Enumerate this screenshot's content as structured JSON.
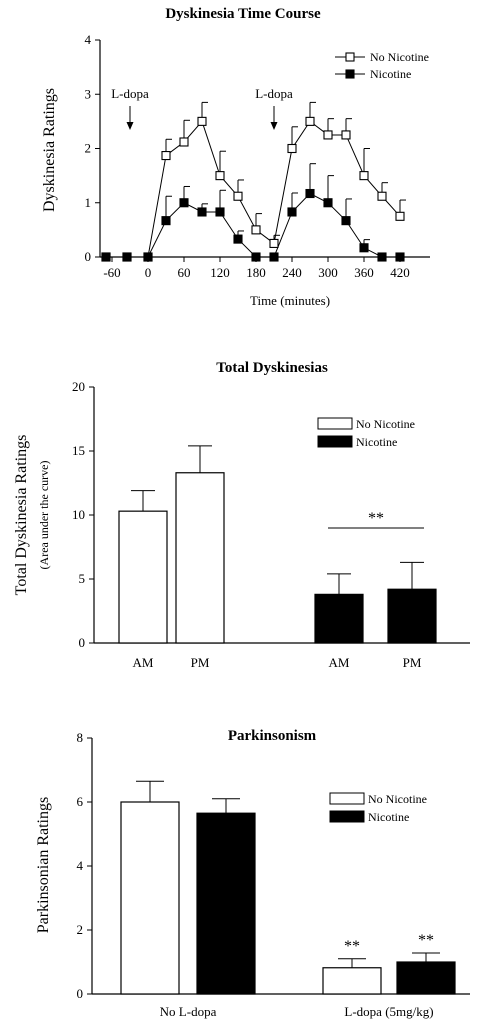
{
  "charts": [
    {
      "type": "line",
      "title": "Dyskinesia Time Course",
      "xlabel": "Time (minutes)",
      "ylabel": "Dyskinesia  Ratings",
      "x_ticks": [
        "-60",
        "0",
        "60",
        "120",
        "180",
        "240",
        "300",
        "360",
        "420"
      ],
      "y_ticks": [
        "0",
        "1",
        "2",
        "3",
        "4"
      ],
      "xlim": [
        -80,
        470
      ],
      "ylim": [
        0,
        4
      ],
      "legend_position": "top-right",
      "annotations": [
        {
          "text": "L-dopa",
          "x": -30
        },
        {
          "text": "L-dopa",
          "x": 210
        }
      ],
      "series": [
        {
          "name": "No Nicotine",
          "marker": "open-square",
          "x": [
            -70,
            -35,
            0,
            30,
            60,
            90,
            120,
            150,
            180,
            210,
            240,
            270,
            300,
            330,
            360,
            390,
            420
          ],
          "y": [
            0,
            0,
            0,
            1.87,
            2.12,
            2.5,
            1.5,
            1.12,
            0.5,
            0.25,
            2.0,
            2.5,
            2.25,
            2.25,
            1.5,
            1.12,
            0.75
          ],
          "err": [
            0,
            0,
            0,
            0.3,
            0.4,
            0.35,
            0.45,
            0.3,
            0.3,
            0.15,
            0.4,
            0.35,
            0.3,
            0.3,
            0.5,
            0.25,
            0.3
          ]
        },
        {
          "name": "Nicotine",
          "marker": "filled-square",
          "x": [
            -70,
            -35,
            0,
            30,
            60,
            90,
            120,
            150,
            180,
            210,
            240,
            270,
            300,
            330,
            360,
            390,
            420
          ],
          "y": [
            0,
            0,
            0,
            0.67,
            1.0,
            0.83,
            0.83,
            0.33,
            0,
            0,
            0.83,
            1.17,
            1.0,
            0.67,
            0.17,
            0,
            0
          ],
          "err": [
            0,
            0,
            0,
            0.45,
            0.3,
            0.15,
            0.4,
            0.15,
            0,
            0,
            0.35,
            0.55,
            0.5,
            0.4,
            0.15,
            0,
            0
          ]
        }
      ]
    },
    {
      "type": "bar",
      "title": "Total Dyskinesias",
      "ylabel": "Total Dyskinesia Ratings",
      "ylabel2": "(Area under the curve)",
      "categories": [
        "AM",
        "PM",
        "AM",
        "PM"
      ],
      "y_ticks": [
        "0",
        "5",
        "10",
        "15",
        "20"
      ],
      "ylim": [
        0,
        20
      ],
      "legend_position": "top-right",
      "legend": [
        {
          "name": "No Nicotine",
          "fill": "open"
        },
        {
          "name": "Nicotine",
          "fill": "filled"
        }
      ],
      "bars": [
        {
          "category": "AM",
          "series": "No Nicotine",
          "value": 10.3,
          "err": 1.6
        },
        {
          "category": "PM",
          "series": "No Nicotine",
          "value": 13.3,
          "err": 2.1
        },
        {
          "category": "AM",
          "series": "Nicotine",
          "value": 3.8,
          "err": 1.6
        },
        {
          "category": "PM",
          "series": "Nicotine",
          "value": 4.2,
          "err": 2.1
        }
      ],
      "significance": "**"
    },
    {
      "type": "bar",
      "title": "Parkinsonism",
      "ylabel": "Parkinsonian Ratings",
      "categories": [
        "No L-dopa",
        "L-dopa (5mg/kg)"
      ],
      "y_ticks": [
        "0",
        "2",
        "4",
        "6",
        "8"
      ],
      "ylim": [
        0,
        8
      ],
      "legend_position": "top-right",
      "legend": [
        {
          "name": "No Nicotine",
          "fill": "open"
        },
        {
          "name": "Nicotine",
          "fill": "filled"
        }
      ],
      "bars": [
        {
          "category": "No L-dopa",
          "series": "No Nicotine",
          "value": 6.0,
          "err": 0.65
        },
        {
          "category": "No L-dopa",
          "series": "Nicotine",
          "value": 5.65,
          "err": 0.45
        },
        {
          "category": "L-dopa (5mg/kg)",
          "series": "No Nicotine",
          "value": 0.82,
          "err": 0.28,
          "sig": "**"
        },
        {
          "category": "L-dopa (5mg/kg)",
          "series": "Nicotine",
          "value": 1.0,
          "err": 0.28,
          "sig": "**"
        }
      ]
    }
  ]
}
